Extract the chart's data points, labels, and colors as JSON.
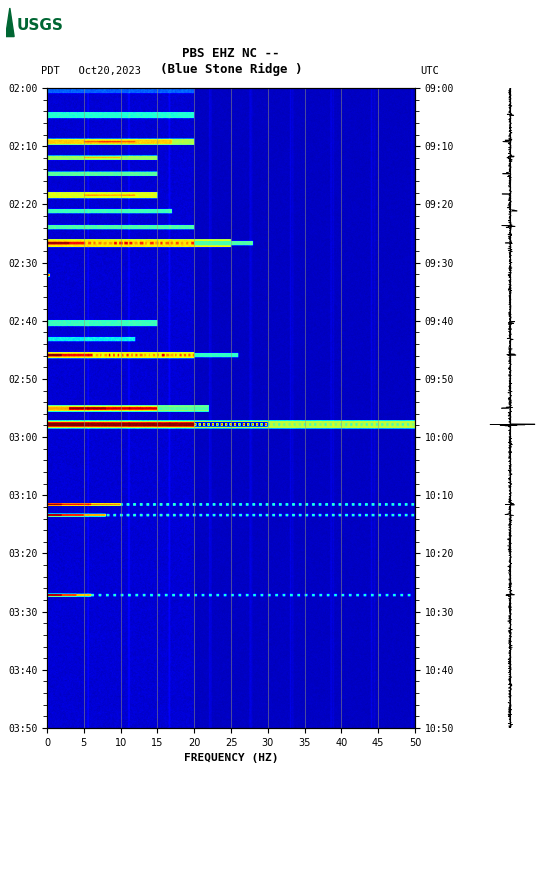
{
  "title_line1": "PBS EHZ NC --",
  "title_line2": "(Blue Stone Ridge )",
  "left_label": "PDT   Oct20,2023",
  "right_label": "UTC",
  "xlabel": "FREQUENCY (HZ)",
  "xlim": [
    0,
    50
  ],
  "x_ticks": [
    0,
    5,
    10,
    15,
    20,
    25,
    30,
    35,
    40,
    45,
    50
  ],
  "left_time_ticks": [
    "02:00",
    "02:10",
    "02:20",
    "02:30",
    "02:40",
    "02:50",
    "03:00",
    "03:10",
    "03:20",
    "03:30",
    "03:40",
    "03:50"
  ],
  "right_time_ticks": [
    "09:00",
    "09:10",
    "09:20",
    "09:30",
    "09:40",
    "09:50",
    "10:00",
    "10:10",
    "10:20",
    "10:30",
    "10:40",
    "10:50"
  ],
  "fig_width": 5.52,
  "fig_height": 8.92,
  "n_freq": 500,
  "n_time": 720,
  "vertical_lines_freq": [
    5,
    10,
    15,
    20,
    25,
    30,
    35,
    40,
    45
  ],
  "usgs_logo_color": "#006633",
  "seis_line_color": "#000000",
  "tick_color": "#000000",
  "bg_color": "#ffffff"
}
